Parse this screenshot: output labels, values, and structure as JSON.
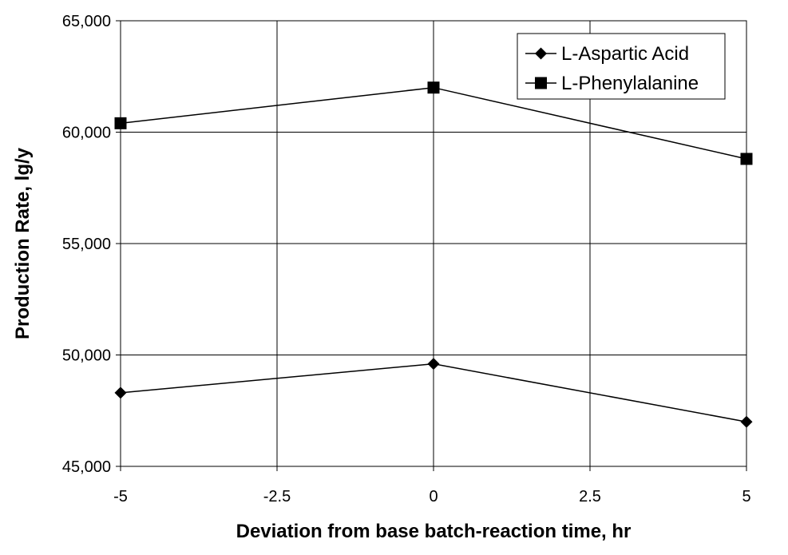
{
  "chart_data": {
    "type": "line",
    "title": "",
    "xlabel": "Deviation from base batch-reaction time, hr",
    "ylabel": "Production Rate, lg/y",
    "xlim": [
      -5,
      5
    ],
    "ylim": [
      45000,
      65000
    ],
    "x_ticks": [
      -5,
      -2.5,
      0,
      2.5,
      5
    ],
    "x_tick_labels": [
      "-5",
      "-2.5",
      "0",
      "2.5",
      "5"
    ],
    "y_ticks": [
      45000,
      50000,
      55000,
      60000,
      65000
    ],
    "y_tick_labels": [
      "45,000",
      "50,000",
      "55,000",
      "60,000",
      "65,000"
    ],
    "grid": true,
    "legend_position": "top-right",
    "x": [
      -5,
      0,
      5
    ],
    "series": [
      {
        "name": "L-Aspartic Acid",
        "marker": "diamond",
        "color": "#000000",
        "values": [
          48300,
          49600,
          47000
        ]
      },
      {
        "name": "L-Phenylalanine",
        "marker": "square",
        "color": "#000000",
        "values": [
          60400,
          62000,
          58800
        ]
      }
    ]
  }
}
